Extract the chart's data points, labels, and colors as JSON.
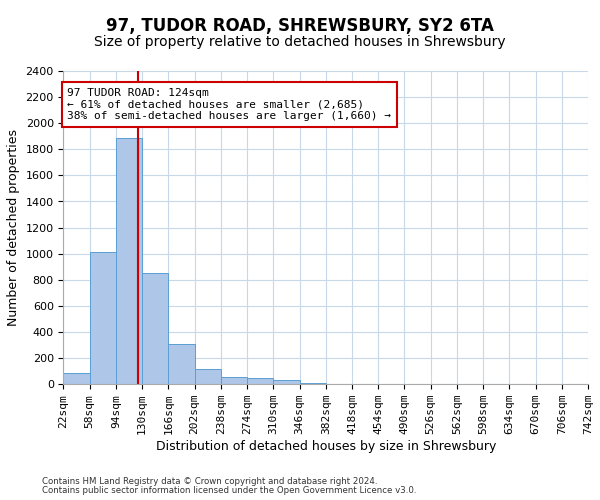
{
  "title": "97, TUDOR ROAD, SHREWSBURY, SY2 6TA",
  "subtitle": "Size of property relative to detached houses in Shrewsbury",
  "xlabel": "Distribution of detached houses by size in Shrewsbury",
  "ylabel": "Number of detached properties",
  "footer_line1": "Contains HM Land Registry data © Crown copyright and database right 2024.",
  "footer_line2": "Contains public sector information licensed under the Open Government Licence v3.0.",
  "bin_edges": [
    22,
    58,
    94,
    130,
    166,
    202,
    238,
    274,
    310,
    346,
    382,
    418,
    454,
    490,
    526,
    562,
    598,
    634,
    670,
    706,
    742
  ],
  "bar_heights": [
    85,
    1010,
    1890,
    855,
    310,
    115,
    55,
    45,
    30,
    10,
    5,
    5,
    2,
    2,
    1,
    1,
    1,
    0,
    0,
    0
  ],
  "bar_color": "#aec6e8",
  "bar_edge_color": "#5a9fd4",
  "property_size": 124,
  "vline_color": "#cc0000",
  "annotation_text": "97 TUDOR ROAD: 124sqm\n← 61% of detached houses are smaller (2,685)\n38% of semi-detached houses are larger (1,660) →",
  "annotation_box_color": "#ffffff",
  "annotation_box_edge_color": "#cc0000",
  "ylim": [
    0,
    2400
  ],
  "yticks": [
    0,
    200,
    400,
    600,
    800,
    1000,
    1200,
    1400,
    1600,
    1800,
    2000,
    2200,
    2400
  ],
  "bg_color": "#ffffff",
  "grid_color": "#c8d8e8",
  "title_fontsize": 12,
  "subtitle_fontsize": 10,
  "ylabel_fontsize": 9,
  "xlabel_fontsize": 9,
  "tick_fontsize": 8,
  "annotation_fontsize": 8
}
